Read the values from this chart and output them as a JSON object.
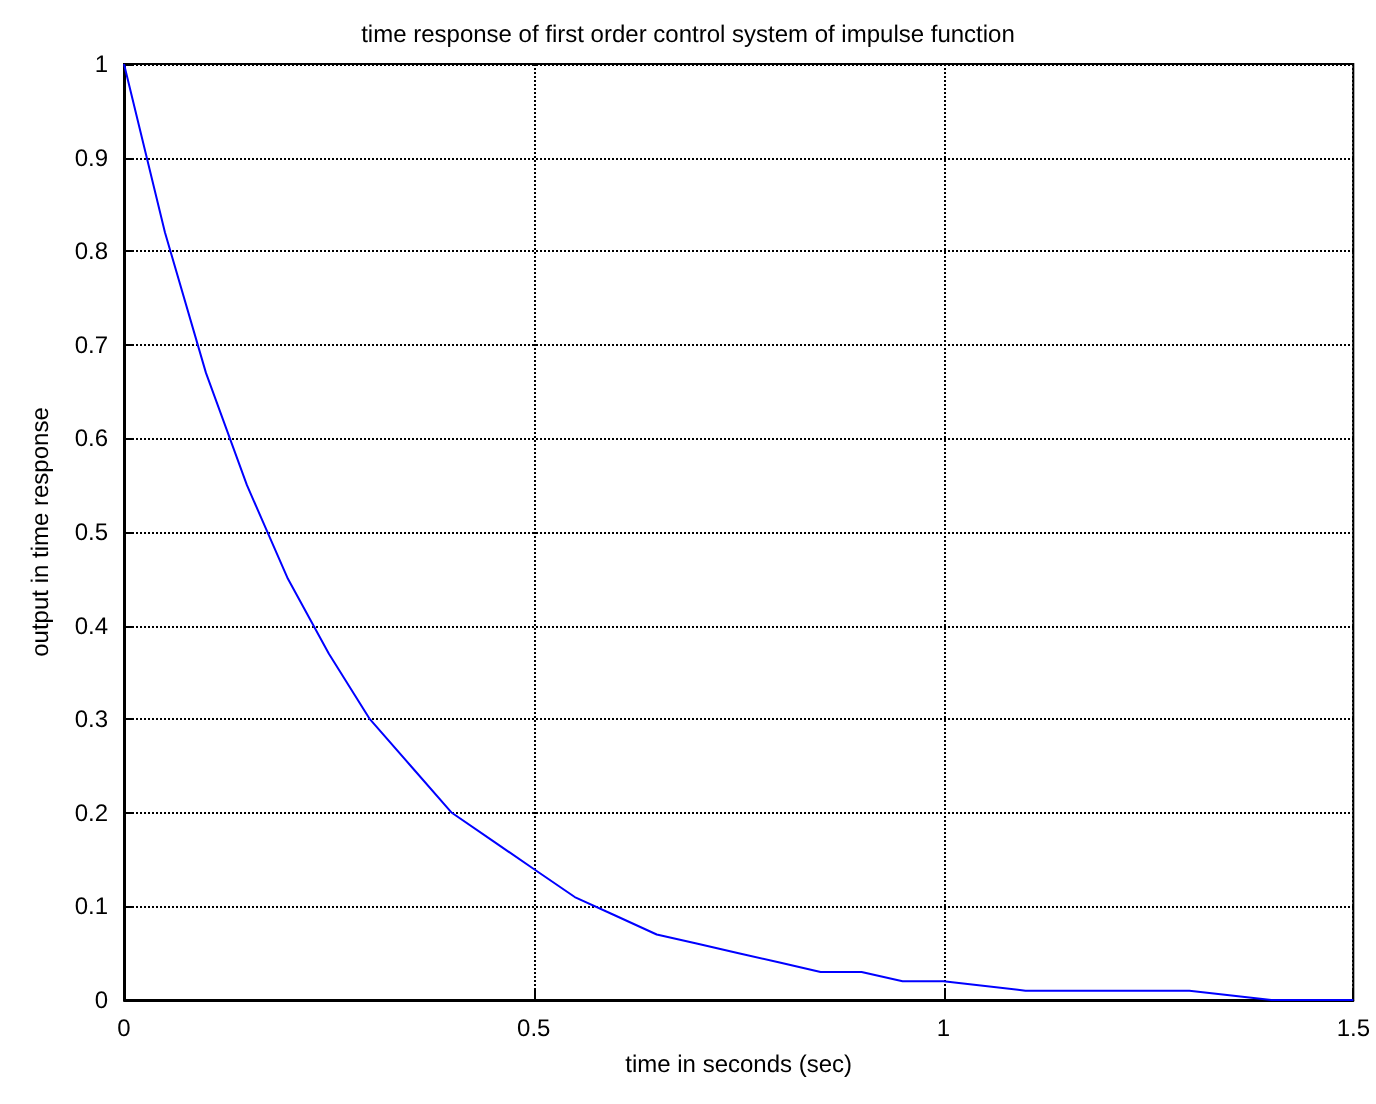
{
  "chart_data": {
    "type": "line",
    "title": "time response of first order control system of impulse function",
    "xlabel": "time in seconds (sec)",
    "ylabel": "output in time response",
    "x": [
      0,
      0.05,
      0.1,
      0.15,
      0.2,
      0.25,
      0.3,
      0.35,
      0.4,
      0.45,
      0.5,
      0.55,
      0.6,
      0.65,
      0.7,
      0.75,
      0.8,
      0.85,
      0.9,
      0.95,
      1,
      1.1,
      1.2,
      1.3,
      1.4,
      1.5
    ],
    "series": [
      {
        "color": "#0000ff",
        "values": [
          1,
          0.82,
          0.67,
          0.55,
          0.45,
          0.37,
          0.3,
          0.25,
          0.2,
          0.17,
          0.14,
          0.11,
          0.09,
          0.07,
          0.06,
          0.05,
          0.04,
          0.03,
          0.03,
          0.02,
          0.02,
          0.01,
          0.01,
          0.01,
          0,
          0
        ]
      }
    ],
    "xlim": [
      0,
      1.5
    ],
    "xticks": [
      0,
      0.5,
      1,
      1.5
    ],
    "ylim": [
      0,
      1
    ],
    "yticks": [
      0,
      0.1,
      0.2,
      0.3,
      0.4,
      0.5,
      0.6,
      0.7,
      0.8,
      0.9,
      1
    ],
    "grid": true,
    "marker": "none",
    "line_style": "solid"
  }
}
